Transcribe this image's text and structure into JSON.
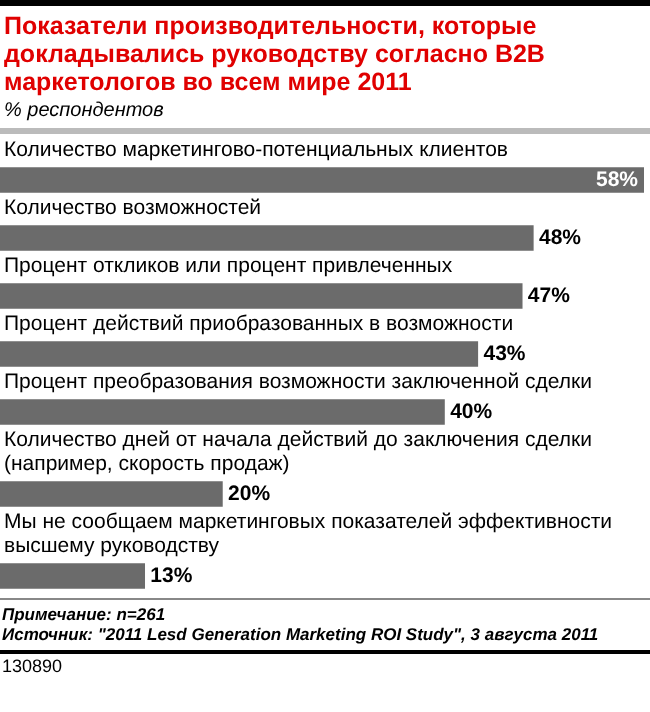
{
  "chart_data": {
    "type": "bar",
    "orientation": "horizontal",
    "title": "Показатели производительности, которые докладывались руководству согласно B2B маркетологов во всем мире 2011",
    "subtitle": "% респондентов",
    "categories": [
      "Количество маркетингово-потенциальных клиентов",
      "Количество возможностей",
      "Процент откликов или процент привлеченных",
      "Процент действий приобразованных в возможности",
      "Процент преобразования возможности заключенной сделки",
      "Количество дней от начала действий до заключения сделки (например, скорость продаж)",
      "Мы не сообщаем маркетинговых показателей эффективности высшему руководству"
    ],
    "values": [
      58,
      48,
      47,
      43,
      40,
      20,
      13
    ],
    "value_labels": [
      "58%",
      "48%",
      "47%",
      "43%",
      "40%",
      "20%",
      "13%"
    ],
    "color": "#6b6b6b",
    "annotations": [
      "Примечание: n=261",
      "Источник: \"2011 Lesd Generation Marketing ROI Study\", 3 августа 2011",
      "130890"
    ]
  }
}
